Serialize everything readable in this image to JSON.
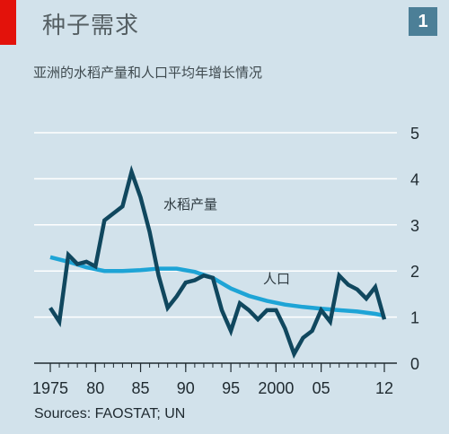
{
  "header": {
    "title": "种子需求",
    "badge": "1",
    "subtitle": "亚洲的水稻产量和人口平均年增长情况"
  },
  "footer": {
    "source": "Sources: FAOSTAT; UN"
  },
  "colors": {
    "rice": "#10475e",
    "population": "#1ea4d6",
    "gridline": "#ffffff",
    "accent": "#e3120b"
  },
  "chart_data": {
    "type": "line",
    "title": "亚洲的水稻产量和人口平均年增长情况",
    "xlim": [
      1975,
      2012
    ],
    "ylim": [
      0,
      5
    ],
    "x_ticks": [
      1975,
      1980,
      1985,
      1990,
      1995,
      2000,
      2005,
      2012
    ],
    "x_tick_labels": [
      "1975",
      "80",
      "85",
      "90",
      "95",
      "2000",
      "05",
      "12"
    ],
    "y_ticks": [
      0,
      1,
      2,
      3,
      4,
      5
    ],
    "y_tick_labels": [
      "0",
      "1",
      "2",
      "3",
      "4",
      "5"
    ],
    "grid": true,
    "series": [
      {
        "name": "水稻产量",
        "x": [
          1975,
          1976,
          1977,
          1978,
          1979,
          1980,
          1981,
          1982,
          1983,
          1984,
          1985,
          1986,
          1987,
          1988,
          1989,
          1990,
          1991,
          1992,
          1993,
          1994,
          1995,
          1996,
          1997,
          1998,
          1999,
          2000,
          2001,
          2002,
          2003,
          2004,
          2005,
          2006,
          2007,
          2008,
          2009,
          2010,
          2011,
          2012
        ],
        "values": [
          1.2,
          0.9,
          2.35,
          2.15,
          2.2,
          2.1,
          3.1,
          3.25,
          3.4,
          4.15,
          3.6,
          2.85,
          1.9,
          1.2,
          1.45,
          1.75,
          1.8,
          1.9,
          1.85,
          1.15,
          0.7,
          1.3,
          1.15,
          0.95,
          1.15,
          1.15,
          0.75,
          0.2,
          0.55,
          0.7,
          1.15,
          0.9,
          1.9,
          1.7,
          1.6,
          1.4,
          1.65,
          0.95
        ]
      },
      {
        "name": "人口",
        "x": [
          1975,
          1977,
          1979,
          1981,
          1983,
          1985,
          1987,
          1989,
          1991,
          1993,
          1995,
          1997,
          1999,
          2001,
          2003,
          2005,
          2007,
          2009,
          2011,
          2012
        ],
        "values": [
          2.3,
          2.2,
          2.08,
          2.0,
          2.0,
          2.02,
          2.05,
          2.05,
          1.98,
          1.85,
          1.62,
          1.46,
          1.35,
          1.27,
          1.22,
          1.18,
          1.15,
          1.12,
          1.07,
          1.03
        ]
      }
    ]
  }
}
